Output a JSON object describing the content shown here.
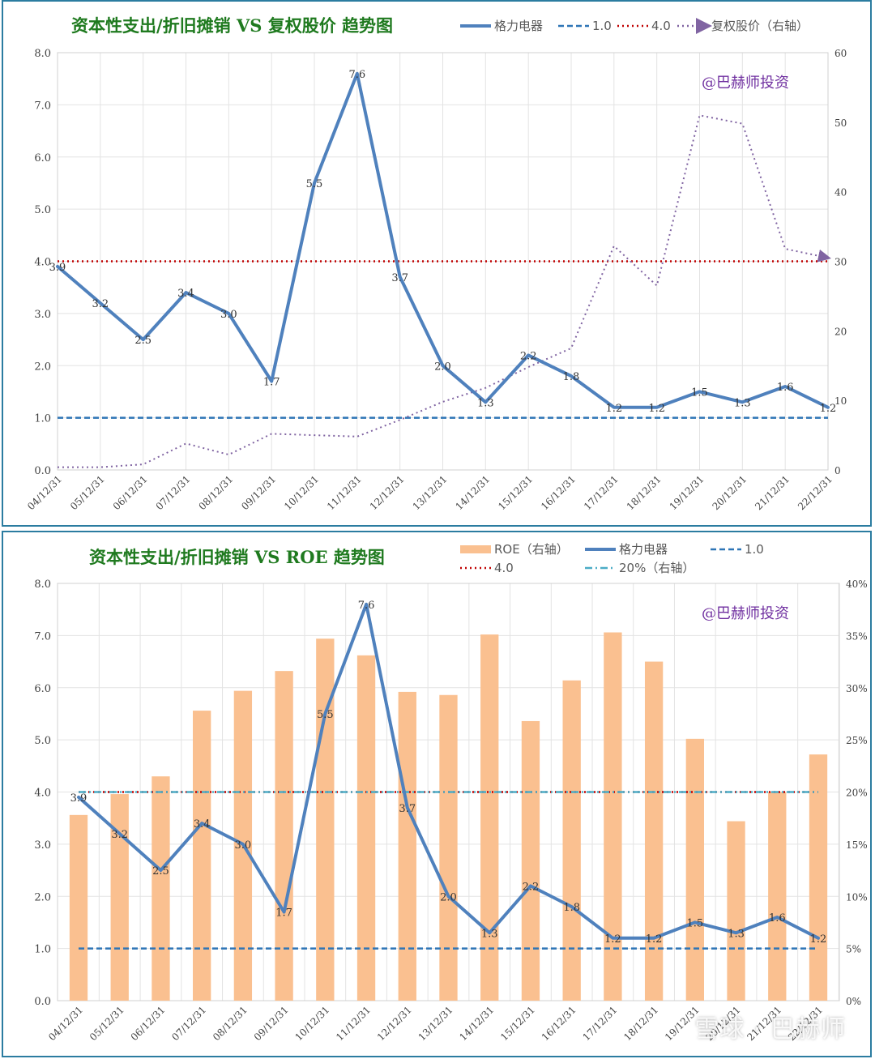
{
  "chart_data": [
    {
      "type": "line",
      "title": "资本性支出/折旧摊销 VS 复权股价 趋势图",
      "annotation": "@巴赫师投资",
      "categories": [
        "04/12/31",
        "05/12/31",
        "06/12/31",
        "07/12/31",
        "08/12/31",
        "09/12/31",
        "10/12/31",
        "11/12/31",
        "12/12/31",
        "13/12/31",
        "14/12/31",
        "15/12/31",
        "16/12/31",
        "17/12/31",
        "18/12/31",
        "19/12/31",
        "20/12/31",
        "21/12/31",
        "22/12/31"
      ],
      "left_axis": {
        "ylim": [
          0,
          8
        ],
        "ticks": [
          "0.0",
          "1.0",
          "2.0",
          "3.0",
          "4.0",
          "5.0",
          "6.0",
          "7.0",
          "8.0"
        ]
      },
      "right_axis": {
        "ylim": [
          0,
          60
        ],
        "ticks": [
          "0",
          "10",
          "20",
          "30",
          "40",
          "50",
          "60"
        ]
      },
      "legend_position": "top-right",
      "series": [
        {
          "name": "格力电器",
          "axis": "left",
          "style": "solid",
          "color": "#4f81bd",
          "values": [
            3.9,
            3.2,
            2.5,
            3.4,
            3.0,
            1.7,
            5.5,
            7.6,
            3.7,
            2.0,
            1.3,
            2.2,
            1.8,
            1.2,
            1.2,
            1.5,
            1.3,
            1.6,
            1.2
          ],
          "labels": [
            "3.9",
            "3.2",
            "2.5",
            "3.4",
            "3.0",
            "1.7",
            "5.5",
            "7.6",
            "3.7",
            "2.0",
            "1.3",
            "2.2",
            "1.8",
            "1.2",
            "1.2",
            "1.5",
            "1.3",
            "1.6",
            "1.2"
          ]
        },
        {
          "name": "1.0",
          "axis": "left",
          "style": "dashed",
          "color": "#2e75b6",
          "values": [
            1,
            1,
            1,
            1,
            1,
            1,
            1,
            1,
            1,
            1,
            1,
            1,
            1,
            1,
            1,
            1,
            1,
            1,
            1
          ]
        },
        {
          "name": "4.0",
          "axis": "left",
          "style": "dotted",
          "color": "#c00000",
          "values": [
            4,
            4,
            4,
            4,
            4,
            4,
            4,
            4,
            4,
            4,
            4,
            4,
            4,
            4,
            4,
            4,
            4,
            4,
            4
          ]
        },
        {
          "name": "复权股价（右轴）",
          "axis": "right",
          "style": "dotted-arrow",
          "color": "#8064a2",
          "values": [
            0.4,
            0.4,
            0.8,
            3.8,
            2.2,
            5.2,
            5.0,
            4.8,
            7.2,
            9.8,
            11.8,
            14.8,
            17.5,
            32.2,
            26.5,
            51.0,
            49.8,
            31.8,
            30.5
          ]
        }
      ]
    },
    {
      "type": "bar",
      "title": "资本性支出/折旧摊销 VS ROE 趋势图",
      "annotation": "@巴赫师投资",
      "categories": [
        "04/12/31",
        "05/12/31",
        "06/12/31",
        "07/12/31",
        "08/12/31",
        "09/12/31",
        "10/12/31",
        "11/12/31",
        "12/12/31",
        "13/12/31",
        "14/12/31",
        "15/12/31",
        "16/12/31",
        "17/12/31",
        "18/12/31",
        "19/12/31",
        "20/12/31",
        "21/12/31",
        "22/12/31"
      ],
      "left_axis": {
        "ylim": [
          0,
          8
        ],
        "ticks": [
          "0.0",
          "1.0",
          "2.0",
          "3.0",
          "4.0",
          "5.0",
          "6.0",
          "7.0",
          "8.0"
        ]
      },
      "right_axis": {
        "ylim": [
          0,
          40
        ],
        "ticks": [
          "0%",
          "5%",
          "10%",
          "15%",
          "20%",
          "25%",
          "30%",
          "35%",
          "40%"
        ]
      },
      "legend_position": "top-right",
      "series": [
        {
          "name": "ROE（右轴）",
          "axis": "right",
          "kind": "bar",
          "color": "#fac090",
          "values": [
            17.8,
            19.8,
            21.5,
            27.8,
            29.7,
            31.6,
            34.7,
            33.1,
            29.6,
            29.3,
            35.1,
            26.8,
            30.7,
            35.3,
            32.5,
            25.1,
            17.2,
            20.0,
            23.6
          ]
        },
        {
          "name": "格力电器",
          "axis": "left",
          "style": "solid",
          "color": "#4f81bd",
          "values": [
            3.9,
            3.2,
            2.5,
            3.4,
            3.0,
            1.7,
            5.5,
            7.6,
            3.7,
            2.0,
            1.3,
            2.2,
            1.8,
            1.2,
            1.2,
            1.5,
            1.3,
            1.6,
            1.2
          ],
          "labels": [
            "3.9",
            "3.2",
            "2.5",
            "3.4",
            "3.0",
            "1.7",
            "5.5",
            "7.6",
            "3.7",
            "2.0",
            "1.3",
            "2.2",
            "1.8",
            "1.2",
            "1.2",
            "1.5",
            "1.3",
            "1.6",
            "1.2"
          ]
        },
        {
          "name": "1.0",
          "axis": "left",
          "style": "dashed",
          "color": "#2e75b6",
          "values": [
            1,
            1,
            1,
            1,
            1,
            1,
            1,
            1,
            1,
            1,
            1,
            1,
            1,
            1,
            1,
            1,
            1,
            1,
            1
          ]
        },
        {
          "name": "4.0",
          "axis": "left",
          "style": "dotted",
          "color": "#c00000",
          "values": [
            4,
            4,
            4,
            4,
            4,
            4,
            4,
            4,
            4,
            4,
            4,
            4,
            4,
            4,
            4,
            4,
            4,
            4,
            4
          ]
        },
        {
          "name": "20%（右轴）",
          "axis": "right",
          "style": "dash-dot",
          "color": "#4bacc6",
          "values": [
            20,
            20,
            20,
            20,
            20,
            20,
            20,
            20,
            20,
            20,
            20,
            20,
            20,
            20,
            20,
            20,
            20,
            20,
            20
          ]
        }
      ]
    }
  ],
  "watermark": "雪球 · 巴赫师"
}
